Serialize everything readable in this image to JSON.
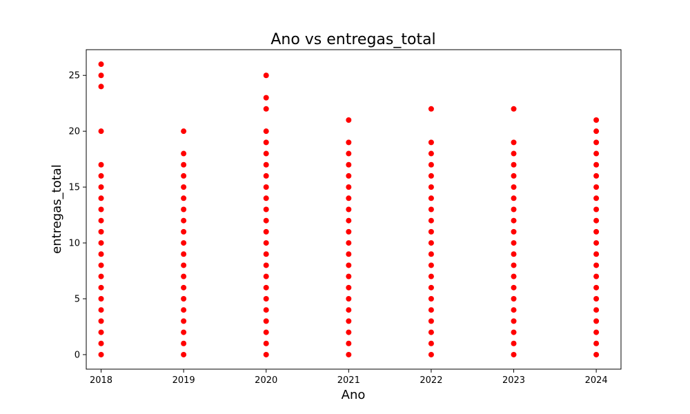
{
  "chart_data": {
    "type": "scatter",
    "title": "Ano vs entregas_total",
    "xlabel": "Ano",
    "ylabel": "entregas_total",
    "xlim": [
      2017.82,
      2024.3
    ],
    "ylim": [
      -1.3,
      27.3
    ],
    "xticks": [
      2018,
      2019,
      2020,
      2021,
      2022,
      2023,
      2024
    ],
    "yticks": [
      0,
      5,
      10,
      15,
      20,
      25
    ],
    "grid": false,
    "legend": "none",
    "marker_color": "#ff0000",
    "series": [
      {
        "points": [
          {
            "x": 2018,
            "y": [
              0,
              1,
              2,
              3,
              4,
              5,
              6,
              7,
              8,
              9,
              10,
              11,
              12,
              13,
              14,
              15,
              16,
              17,
              20,
              24,
              25,
              26
            ]
          },
          {
            "x": 2019,
            "y": [
              0,
              1,
              2,
              3,
              4,
              5,
              6,
              7,
              8,
              9,
              10,
              11,
              12,
              13,
              14,
              15,
              16,
              17,
              18,
              20
            ]
          },
          {
            "x": 2020,
            "y": [
              0,
              1,
              2,
              3,
              4,
              5,
              6,
              7,
              8,
              9,
              10,
              11,
              12,
              13,
              14,
              15,
              16,
              17,
              18,
              19,
              20,
              22,
              23,
              25
            ]
          },
          {
            "x": 2021,
            "y": [
              0,
              1,
              2,
              3,
              4,
              5,
              6,
              7,
              8,
              9,
              10,
              11,
              12,
              13,
              14,
              15,
              16,
              17,
              18,
              19,
              21
            ]
          },
          {
            "x": 2022,
            "y": [
              0,
              1,
              2,
              3,
              4,
              5,
              6,
              7,
              8,
              9,
              10,
              11,
              12,
              13,
              14,
              15,
              16,
              17,
              18,
              19,
              22
            ]
          },
          {
            "x": 2023,
            "y": [
              0,
              1,
              2,
              3,
              4,
              5,
              6,
              7,
              8,
              9,
              10,
              11,
              12,
              13,
              14,
              15,
              16,
              17,
              18,
              19,
              22
            ]
          },
          {
            "x": 2024,
            "y": [
              0,
              1,
              2,
              3,
              4,
              5,
              6,
              7,
              8,
              9,
              10,
              11,
              12,
              13,
              14,
              15,
              16,
              17,
              18,
              19,
              20,
              21
            ]
          }
        ]
      }
    ]
  }
}
